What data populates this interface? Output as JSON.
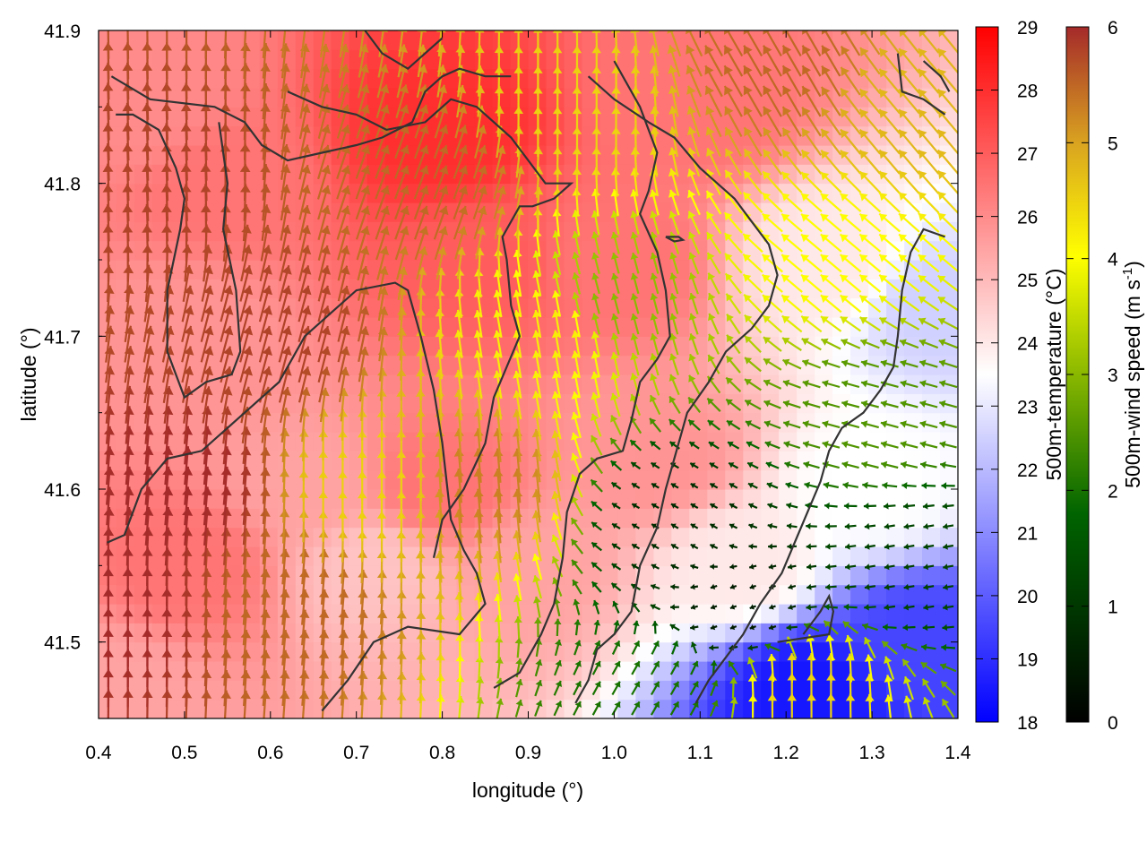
{
  "chart_data": {
    "type": "heatmap",
    "title": "",
    "xlabel": "longitude (°)",
    "ylabel": "latitude (°)",
    "xlim": [
      0.4,
      1.4
    ],
    "ylim": [
      41.45,
      41.9
    ],
    "xticks": [
      "0.4",
      "0.5",
      "0.6",
      "0.7",
      "0.8",
      "0.9",
      "1.0",
      "1.1",
      "1.2",
      "1.3",
      "1.4"
    ],
    "yticks": [
      "41.5",
      "41.6",
      "41.7",
      "41.8",
      "41.9"
    ],
    "grid": false,
    "temperature_colorbar": {
      "label": "500m-temperature (°C)",
      "range": [
        18,
        29
      ],
      "ticks": [
        "18",
        "19",
        "20",
        "21",
        "22",
        "23",
        "24",
        "25",
        "26",
        "27",
        "28",
        "29"
      ],
      "colors": [
        "#0000ff",
        "#ffffff",
        "#ff0000"
      ]
    },
    "wind_colorbar": {
      "label": "500m-wind speed (m s",
      "label_sup": "-1",
      "label_end": ")",
      "range": [
        0,
        6
      ],
      "ticks": [
        "0",
        "1",
        "2",
        "3",
        "4",
        "5",
        "6"
      ],
      "colors": [
        "#000000",
        "#006400",
        "#ffff00",
        "#daa520",
        "#a52a2a"
      ]
    },
    "temperature_field_samples": [
      {
        "lon": 0.45,
        "lat": 41.85,
        "temp": 26.0
      },
      {
        "lon": 0.55,
        "lat": 41.8,
        "temp": 26.5
      },
      {
        "lon": 0.5,
        "lat": 41.7,
        "temp": 25.8
      },
      {
        "lon": 0.5,
        "lat": 41.55,
        "temp": 26.5
      },
      {
        "lon": 0.65,
        "lat": 41.6,
        "temp": 25.5
      },
      {
        "lon": 0.72,
        "lat": 41.55,
        "temp": 24.8
      },
      {
        "lon": 0.8,
        "lat": 41.83,
        "temp": 28.0
      },
      {
        "lon": 0.85,
        "lat": 41.75,
        "temp": 27.0
      },
      {
        "lon": 0.8,
        "lat": 41.6,
        "temp": 26.5
      },
      {
        "lon": 0.9,
        "lat": 41.55,
        "temp": 25.5
      },
      {
        "lon": 1.0,
        "lat": 41.75,
        "temp": 26.5
      },
      {
        "lon": 1.05,
        "lat": 41.62,
        "temp": 25.8
      },
      {
        "lon": 1.1,
        "lat": 41.85,
        "temp": 26.5
      },
      {
        "lon": 1.15,
        "lat": 41.55,
        "temp": 24.0
      },
      {
        "lon": 1.25,
        "lat": 41.75,
        "temp": 24.0
      },
      {
        "lon": 1.3,
        "lat": 41.6,
        "temp": 23.5
      },
      {
        "lon": 1.35,
        "lat": 41.5,
        "temp": 19.5
      },
      {
        "lon": 1.23,
        "lat": 41.47,
        "temp": 18.5
      },
      {
        "lon": 1.38,
        "lat": 41.72,
        "temp": 22.5
      },
      {
        "lon": 0.42,
        "lat": 41.47,
        "temp": 25.5
      }
    ],
    "wind_field_samples": [
      {
        "lon": 0.45,
        "lat": 41.8,
        "speed": 5.8,
        "dir": 92
      },
      {
        "lon": 0.5,
        "lat": 41.6,
        "speed": 6.0,
        "dir": 85
      },
      {
        "lon": 0.6,
        "lat": 41.7,
        "speed": 5.8,
        "dir": 75
      },
      {
        "lon": 0.62,
        "lat": 41.52,
        "speed": 5.5,
        "dir": 85
      },
      {
        "lon": 0.72,
        "lat": 41.6,
        "speed": 4.5,
        "dir": 90
      },
      {
        "lon": 0.78,
        "lat": 41.8,
        "speed": 5.5,
        "dir": 70
      },
      {
        "lon": 0.85,
        "lat": 41.6,
        "speed": 5.3,
        "dir": 95
      },
      {
        "lon": 0.93,
        "lat": 41.7,
        "speed": 4.2,
        "dir": 100
      },
      {
        "lon": 0.95,
        "lat": 41.85,
        "speed": 4.5,
        "dir": 90
      },
      {
        "lon": 1.0,
        "lat": 41.72,
        "speed": 3.0,
        "dir": 105
      },
      {
        "lon": 1.07,
        "lat": 41.58,
        "speed": 0.8,
        "dir": 150
      },
      {
        "lon": 1.15,
        "lat": 41.52,
        "speed": 0.5,
        "dir": 200
      },
      {
        "lon": 1.2,
        "lat": 41.88,
        "speed": 5.5,
        "dir": 120
      },
      {
        "lon": 1.25,
        "lat": 41.75,
        "speed": 4.0,
        "dir": 140
      },
      {
        "lon": 1.3,
        "lat": 41.65,
        "speed": 2.5,
        "dir": 165
      },
      {
        "lon": 1.35,
        "lat": 41.55,
        "speed": 1.2,
        "dir": 190
      },
      {
        "lon": 1.22,
        "lat": 41.47,
        "speed": 4.5,
        "dir": 90
      },
      {
        "lon": 1.05,
        "lat": 41.47,
        "speed": 2.0,
        "dir": 60
      },
      {
        "lon": 1.35,
        "lat": 41.85,
        "speed": 4.8,
        "dir": 130
      },
      {
        "lon": 0.42,
        "lat": 41.52,
        "speed": 6.0,
        "dir": 90
      }
    ],
    "elevation_contours": [
      [
        [
          0.41,
          41.565
        ],
        [
          0.43,
          41.57
        ],
        [
          0.45,
          41.6
        ],
        [
          0.48,
          41.62
        ],
        [
          0.52,
          41.625
        ],
        [
          0.57,
          41.65
        ],
        [
          0.61,
          41.67
        ],
        [
          0.64,
          41.7
        ],
        [
          0.67,
          41.715
        ],
        [
          0.7,
          41.73
        ],
        [
          0.745,
          41.735
        ],
        [
          0.76,
          41.73
        ],
        [
          0.775,
          41.7
        ],
        [
          0.79,
          41.665
        ],
        [
          0.8,
          41.63
        ],
        [
          0.81,
          41.58
        ],
        [
          0.825,
          41.56
        ],
        [
          0.84,
          41.545
        ],
        [
          0.85,
          41.525
        ],
        [
          0.82,
          41.505
        ],
        [
          0.76,
          41.51
        ],
        [
          0.72,
          41.5
        ],
        [
          0.69,
          41.475
        ],
        [
          0.66,
          41.455
        ]
      ],
      [
        [
          0.415,
          41.87
        ],
        [
          0.46,
          41.855
        ],
        [
          0.535,
          41.85
        ],
        [
          0.57,
          41.84
        ],
        [
          0.59,
          41.825
        ],
        [
          0.62,
          41.815
        ],
        [
          0.66,
          41.82
        ],
        [
          0.7,
          41.825
        ],
        [
          0.73,
          41.83
        ],
        [
          0.765,
          41.84
        ],
        [
          0.78,
          41.86
        ],
        [
          0.8,
          41.87
        ],
        [
          0.82,
          41.875
        ],
        [
          0.85,
          41.87
        ],
        [
          0.88,
          41.87
        ]
      ],
      [
        [
          0.54,
          41.84
        ],
        [
          0.55,
          41.8
        ],
        [
          0.545,
          41.77
        ],
        [
          0.56,
          41.73
        ],
        [
          0.565,
          41.69
        ],
        [
          0.555,
          41.675
        ],
        [
          0.525,
          41.67
        ],
        [
          0.5,
          41.66
        ],
        [
          0.48,
          41.69
        ],
        [
          0.48,
          41.73
        ],
        [
          0.495,
          41.77
        ],
        [
          0.5,
          41.79
        ],
        [
          0.49,
          41.81
        ],
        [
          0.47,
          41.835
        ],
        [
          0.44,
          41.845
        ],
        [
          0.42,
          41.845
        ]
      ],
      [
        [
          0.62,
          41.86
        ],
        [
          0.66,
          41.85
        ],
        [
          0.7,
          41.845
        ],
        [
          0.735,
          41.835
        ],
        [
          0.78,
          41.84
        ],
        [
          0.81,
          41.855
        ],
        [
          0.84,
          41.85
        ],
        [
          0.88,
          41.83
        ],
        [
          0.92,
          41.8
        ],
        [
          0.95,
          41.8
        ],
        [
          0.93,
          41.79
        ],
        [
          0.905,
          41.785
        ],
        [
          0.89,
          41.785
        ],
        [
          0.87,
          41.765
        ],
        [
          0.875,
          41.75
        ],
        [
          0.88,
          41.72
        ],
        [
          0.89,
          41.7
        ],
        [
          0.875,
          41.68
        ],
        [
          0.86,
          41.66
        ],
        [
          0.85,
          41.63
        ],
        [
          0.825,
          41.6
        ],
        [
          0.8,
          41.58
        ],
        [
          0.79,
          41.555
        ]
      ],
      [
        [
          0.97,
          41.87
        ],
        [
          1.0,
          41.855
        ],
        [
          1.04,
          41.84
        ],
        [
          1.07,
          41.83
        ],
        [
          1.1,
          41.81
        ],
        [
          1.12,
          41.8
        ],
        [
          1.14,
          41.79
        ],
        [
          1.16,
          41.775
        ],
        [
          1.18,
          41.76
        ],
        [
          1.19,
          41.74
        ],
        [
          1.18,
          41.72
        ],
        [
          1.16,
          41.705
        ],
        [
          1.13,
          41.69
        ],
        [
          1.11,
          41.67
        ],
        [
          1.085,
          41.65
        ],
        [
          1.07,
          41.62
        ],
        [
          1.06,
          41.6
        ],
        [
          1.05,
          41.575
        ],
        [
          1.03,
          41.55
        ],
        [
          1.02,
          41.52
        ],
        [
          1.0,
          41.505
        ],
        [
          0.98,
          41.495
        ],
        [
          0.97,
          41.475
        ],
        [
          0.955,
          41.46
        ]
      ],
      [
        [
          1.0,
          41.88
        ],
        [
          1.03,
          41.85
        ],
        [
          1.05,
          41.82
        ],
        [
          1.04,
          41.795
        ],
        [
          1.03,
          41.78
        ],
        [
          1.05,
          41.755
        ],
        [
          1.06,
          41.73
        ],
        [
          1.065,
          41.7
        ],
        [
          1.05,
          41.685
        ],
        [
          1.03,
          41.67
        ],
        [
          1.02,
          41.645
        ],
        [
          1.01,
          41.625
        ],
        [
          0.98,
          41.62
        ],
        [
          0.96,
          41.61
        ],
        [
          0.945,
          41.585
        ],
        [
          0.94,
          41.555
        ],
        [
          0.93,
          41.525
        ],
        [
          0.915,
          41.505
        ],
        [
          0.89,
          41.48
        ],
        [
          0.86,
          41.47
        ]
      ],
      [
        [
          1.06,
          41.765
        ],
        [
          1.075,
          41.765
        ],
        [
          1.08,
          41.763
        ],
        [
          1.07,
          41.762
        ],
        [
          1.06,
          41.765
        ]
      ],
      [
        [
          1.385,
          41.765
        ],
        [
          1.36,
          41.77
        ],
        [
          1.345,
          41.755
        ],
        [
          1.335,
          41.73
        ],
        [
          1.33,
          41.7
        ],
        [
          1.325,
          41.68
        ],
        [
          1.31,
          41.665
        ],
        [
          1.29,
          41.65
        ],
        [
          1.265,
          41.64
        ],
        [
          1.25,
          41.625
        ],
        [
          1.24,
          41.605
        ],
        [
          1.225,
          41.585
        ],
        [
          1.21,
          41.565
        ],
        [
          1.195,
          41.545
        ],
        [
          1.17,
          41.525
        ],
        [
          1.15,
          41.505
        ],
        [
          1.13,
          41.49
        ],
        [
          1.11,
          41.475
        ],
        [
          1.095,
          41.46
        ]
      ],
      [
        [
          1.19,
          41.5
        ],
        [
          1.25,
          41.505
        ],
        [
          1.255,
          41.52
        ],
        [
          1.25,
          41.53
        ],
        [
          1.24,
          41.52
        ],
        [
          1.22,
          41.505
        ]
      ],
      [
        [
          1.36,
          41.88
        ],
        [
          1.38,
          41.87
        ],
        [
          1.39,
          41.86
        ]
      ],
      [
        [
          1.33,
          41.885
        ],
        [
          1.335,
          41.86
        ],
        [
          1.36,
          41.855
        ],
        [
          1.385,
          41.845
        ]
      ],
      [
        [
          0.71,
          41.9
        ],
        [
          0.73,
          41.885
        ],
        [
          0.76,
          41.875
        ],
        [
          0.78,
          41.885
        ],
        [
          0.8,
          41.895
        ]
      ]
    ]
  }
}
